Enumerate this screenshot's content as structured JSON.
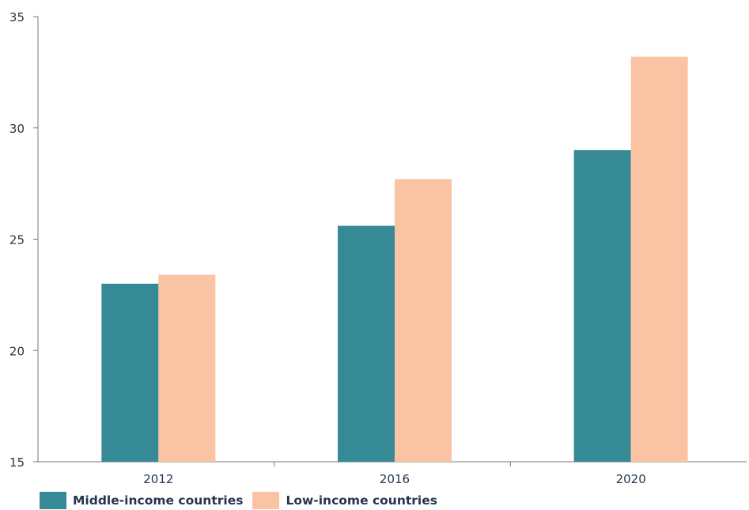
{
  "chart_data": {
    "type": "bar",
    "title": "",
    "xlabel": "",
    "ylabel": "",
    "categories": [
      "2012",
      "2016",
      "2020"
    ],
    "series": [
      {
        "name": "Middle-income countries",
        "values": [
          23.0,
          25.6,
          29.0
        ],
        "color": "#358a95"
      },
      {
        "name": "Low-income countries",
        "values": [
          23.4,
          27.7,
          33.2
        ],
        "color": "#fac4a4"
      }
    ],
    "ylim": [
      15,
      35
    ],
    "yticks": [
      "15",
      "20",
      "25",
      "30",
      "35"
    ],
    "grid": false,
    "legend_position": "bottom-left"
  }
}
